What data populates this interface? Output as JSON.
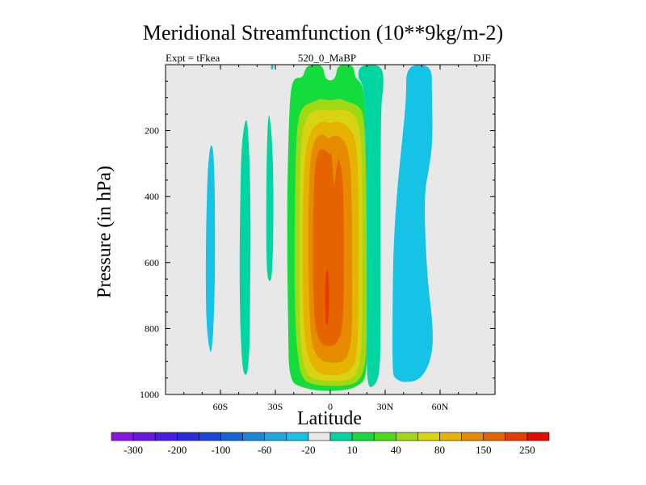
{
  "header": {
    "title": "Meridional Streamfunction (10**9kg/m-2)",
    "expt": "Expt = tFkea",
    "subtitle": "520_0_MaBP",
    "season": "DJF"
  },
  "chart_data": {
    "type": "heatmap",
    "title": "Meridional Streamfunction (10**9kg/m-2)",
    "xlabel": "Latitude",
    "ylabel": "Pressure (in hPa)",
    "x_range": [
      -90,
      90
    ],
    "y_range": [
      0,
      1000
    ],
    "y_reversed": true,
    "x_ticks": [
      {
        "value": -60,
        "label": "60S"
      },
      {
        "value": -30,
        "label": "30S"
      },
      {
        "value": 0,
        "label": "0"
      },
      {
        "value": 30,
        "label": "30N"
      },
      {
        "value": 60,
        "label": "60N"
      }
    ],
    "y_ticks": [
      {
        "value": 200,
        "label": "200"
      },
      {
        "value": 400,
        "label": "400"
      },
      {
        "value": 600,
        "label": "600"
      },
      {
        "value": 800,
        "label": "800"
      },
      {
        "value": 1000,
        "label": "1000"
      }
    ],
    "background_color": "#e8e8e8",
    "colorbar": {
      "levels": [
        -300,
        -250,
        -200,
        -150,
        -100,
        -80,
        -60,
        -40,
        -20,
        -10,
        10,
        20,
        40,
        60,
        80,
        100,
        150,
        200,
        250,
        300
      ],
      "labels": [
        "-300",
        "-200",
        "-100",
        "-60",
        "-20",
        "10",
        "40",
        "80",
        "150",
        "250"
      ],
      "colors": [
        "#8a14e6",
        "#6a14e6",
        "#4a1ce6",
        "#2a2ae0",
        "#1a48dd",
        "#1466d6",
        "#1a88d8",
        "#1aa8e0",
        "#14c3e6",
        "#e8e8e8",
        "#00d4a0",
        "#14dc3c",
        "#4adc14",
        "#a0d814",
        "#d8d414",
        "#e6b400",
        "#e68a00",
        "#e66400",
        "#e63c00",
        "#e60a00"
      ]
    },
    "regions": [
      {
        "name": "cyan-60s",
        "value": -15,
        "color": "#14c3e6",
        "polygon": [
          [
            -66,
            865
          ],
          [
            -67.5,
            800
          ],
          [
            -68,
            700
          ],
          [
            -68,
            560
          ],
          [
            -67.5,
            420
          ],
          [
            -67,
            320
          ],
          [
            -65.5,
            240
          ],
          [
            -64,
            250
          ],
          [
            -63.3,
            330
          ],
          [
            -63,
            450
          ],
          [
            -63,
            600
          ],
          [
            -63.3,
            720
          ],
          [
            -64,
            820
          ],
          [
            -65,
            875
          ]
        ]
      },
      {
        "name": "green-45s",
        "value": 15,
        "color": "#00d4a0",
        "polygon": [
          [
            -48,
            920
          ],
          [
            -49,
            820
          ],
          [
            -49.5,
            700
          ],
          [
            -49.5,
            520
          ],
          [
            -49,
            360
          ],
          [
            -48.5,
            250
          ],
          [
            -47,
            180
          ],
          [
            -45.5,
            160
          ],
          [
            -44.5,
            240
          ],
          [
            -43.8,
            340
          ],
          [
            -43.5,
            520
          ],
          [
            -43.8,
            700
          ],
          [
            -44,
            850
          ],
          [
            -45,
            930
          ],
          [
            -46.5,
            945
          ]
        ]
      },
      {
        "name": "green-32s",
        "value": 15,
        "color": "#00d4a0",
        "polygon": [
          [
            -34.5,
            650
          ],
          [
            -35,
            540
          ],
          [
            -35,
            430
          ],
          [
            -34.8,
            300
          ],
          [
            -34.3,
            190
          ],
          [
            -33.5,
            140
          ],
          [
            -32,
            210
          ],
          [
            -31.2,
            320
          ],
          [
            -31,
            450
          ],
          [
            -31.5,
            600
          ],
          [
            -32.3,
            660
          ]
        ]
      },
      {
        "name": "cyan-32s-top",
        "value": -15,
        "color": "#14c3e6",
        "polygon": [
          [
            -32.5,
            0
          ],
          [
            -31,
            0
          ],
          [
            -31.2,
            15
          ],
          [
            -32.3,
            15
          ]
        ]
      },
      {
        "name": "cyan-north",
        "value": -15,
        "color": "#14c3e6",
        "polygon": [
          [
            34,
            930
          ],
          [
            34,
            750
          ],
          [
            34.5,
            550
          ],
          [
            36.5,
            380
          ],
          [
            39.5,
            220
          ],
          [
            41.5,
            100
          ],
          [
            41.5,
            0
          ],
          [
            55.5,
            0
          ],
          [
            55.5,
            80
          ],
          [
            56,
            220
          ],
          [
            54.5,
            300
          ],
          [
            51,
            400
          ],
          [
            53,
            650
          ],
          [
            56,
            780
          ],
          [
            56,
            880
          ],
          [
            50,
            955
          ],
          [
            40,
            965
          ],
          [
            35,
            950
          ]
        ]
      },
      {
        "name": "green-tropics",
        "value": 25,
        "color": "#14dc3c",
        "polygon": [
          [
            -22.5,
            960
          ],
          [
            -23,
            800
          ],
          [
            -23.5,
            600
          ],
          [
            -23.5,
            400
          ],
          [
            -23,
            250
          ],
          [
            -22,
            90
          ],
          [
            -20,
            40
          ],
          [
            -15,
            40
          ],
          [
            -13.5,
            10
          ],
          [
            -11,
            0
          ],
          [
            -4,
            0
          ],
          [
            -3,
            40
          ],
          [
            0,
            50
          ],
          [
            3,
            40
          ],
          [
            4,
            0
          ],
          [
            11,
            0
          ],
          [
            13,
            10
          ],
          [
            13.5,
            40
          ],
          [
            18,
            60
          ],
          [
            19,
            150
          ],
          [
            19,
            300
          ],
          [
            19.5,
            600
          ],
          [
            20,
            800
          ],
          [
            20,
            950
          ],
          [
            15,
            975
          ],
          [
            8,
            988
          ],
          [
            -5,
            990
          ],
          [
            -15,
            980
          ]
        ]
      },
      {
        "name": "teal-ne",
        "value": 15,
        "color": "#00d4a0",
        "polygon": [
          [
            19,
            300
          ],
          [
            19,
            150
          ],
          [
            18,
            60
          ],
          [
            15,
            40
          ],
          [
            16,
            0
          ],
          [
            29,
            0
          ],
          [
            29,
            80
          ],
          [
            28,
            100
          ],
          [
            27.5,
            240
          ],
          [
            27.5,
            600
          ],
          [
            27.5,
            840
          ],
          [
            27,
            930
          ],
          [
            25,
            970
          ],
          [
            20,
            985
          ],
          [
            20,
            800
          ],
          [
            19.5,
            600
          ]
        ]
      },
      {
        "name": "chartreuse-ring",
        "value": 70,
        "color": "#a0d814",
        "polygon": [
          [
            -16,
            950
          ],
          [
            -18.5,
            850
          ],
          [
            -19.5,
            700
          ],
          [
            -19.5,
            500
          ],
          [
            -19,
            300
          ],
          [
            -18,
            170
          ],
          [
            -15,
            125
          ],
          [
            -9,
            112
          ],
          [
            -5,
            102
          ],
          [
            0,
            110
          ],
          [
            5,
            102
          ],
          [
            9,
            112
          ],
          [
            15,
            122
          ],
          [
            18.5,
            150
          ],
          [
            19.5,
            300
          ],
          [
            20,
            550
          ],
          [
            20,
            800
          ],
          [
            19.5,
            900
          ],
          [
            17,
            950
          ],
          [
            12,
            972
          ],
          [
            0,
            975
          ],
          [
            -10,
            970
          ]
        ]
      },
      {
        "name": "gold-ring",
        "value": 90,
        "color": "#d8d414",
        "polygon": [
          [
            -14,
            935
          ],
          [
            -16.5,
            830
          ],
          [
            -17,
            680
          ],
          [
            -17,
            500
          ],
          [
            -16.5,
            320
          ],
          [
            -15.5,
            200
          ],
          [
            -12,
            150
          ],
          [
            -7,
            135
          ],
          [
            0,
            140
          ],
          [
            7,
            135
          ],
          [
            12,
            147
          ],
          [
            16,
            178
          ],
          [
            17.5,
            300
          ],
          [
            17.5,
            550
          ],
          [
            17.5,
            800
          ],
          [
            16.5,
            900
          ],
          [
            14,
            945
          ],
          [
            8,
            958
          ],
          [
            0,
            960
          ],
          [
            -8,
            955
          ]
        ]
      },
      {
        "name": "amber-ring",
        "value": 120,
        "color": "#e6b400",
        "polygon": [
          [
            -12,
            900
          ],
          [
            -14.5,
            800
          ],
          [
            -15,
            650
          ],
          [
            -15,
            480
          ],
          [
            -14.5,
            330
          ],
          [
            -13,
            240
          ],
          [
            -9.5,
            188
          ],
          [
            -4,
            170
          ],
          [
            0,
            178
          ],
          [
            4,
            170
          ],
          [
            9.5,
            185
          ],
          [
            14,
            222
          ],
          [
            15.5,
            340
          ],
          [
            15.5,
            550
          ],
          [
            15.5,
            780
          ],
          [
            14.5,
            880
          ],
          [
            12,
            925
          ],
          [
            6,
            940
          ],
          [
            0,
            942
          ],
          [
            -6,
            938
          ]
        ]
      },
      {
        "name": "orange-core",
        "value": 170,
        "color": "#e68a00",
        "polygon": [
          [
            -10,
            860
          ],
          [
            -11.5,
            750
          ],
          [
            -12,
            600
          ],
          [
            -12,
            450
          ],
          [
            -11.5,
            330
          ],
          [
            -10,
            250
          ],
          [
            -7,
            215
          ],
          [
            -3,
            210
          ],
          [
            -1,
            228
          ],
          [
            1,
            215
          ],
          [
            5,
            215
          ],
          [
            9,
            240
          ],
          [
            11.5,
            320
          ],
          [
            12,
            550
          ],
          [
            12,
            780
          ],
          [
            11,
            860
          ],
          [
            8,
            900
          ],
          [
            2,
            905
          ],
          [
            -5,
            900
          ]
        ]
      },
      {
        "name": "dark-orange-core",
        "value": 220,
        "color": "#e66400",
        "polygon": [
          [
            -8.5,
            790
          ],
          [
            -9.5,
            650
          ],
          [
            -9.5,
            500
          ],
          [
            -9,
            380
          ],
          [
            -8,
            285
          ],
          [
            -5.5,
            255
          ],
          [
            -3,
            258
          ],
          [
            -1,
            270
          ],
          [
            1,
            268
          ],
          [
            2,
            390
          ],
          [
            3.5,
            300
          ],
          [
            5,
            280
          ],
          [
            7,
            350
          ],
          [
            7.5,
            500
          ],
          [
            7.5,
            700
          ],
          [
            6.5,
            810
          ],
          [
            3,
            850
          ],
          [
            -2,
            855
          ],
          [
            -6,
            840
          ]
        ]
      },
      {
        "name": "red-core",
        "value": 270,
        "color": "#e63c00",
        "polygon": [
          [
            -2.5,
            780
          ],
          [
            -3,
            720
          ],
          [
            -2.8,
            660
          ],
          [
            -1.8,
            610
          ],
          [
            -0.8,
            640
          ],
          [
            -0.5,
            720
          ],
          [
            -1.2,
            785
          ],
          [
            -2,
            795
          ]
        ]
      }
    ]
  }
}
